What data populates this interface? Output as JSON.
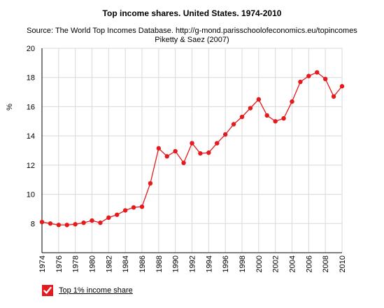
{
  "chart_data": {
    "type": "line",
    "title": "Top income shares. United States. 1974-2010",
    "subtitle": [
      "Source: The World Top Incomes Database. http://g-mond.parisschoolofeconomics.eu/topincomes",
      "Piketty & Saez (2007)"
    ],
    "xlabel": "",
    "ylabel": "%",
    "xlim": [
      1974,
      2010
    ],
    "ylim": [
      6,
      20
    ],
    "xticks": [
      "1974",
      "1976",
      "1978",
      "1980",
      "1982",
      "1984",
      "1986",
      "1988",
      "1990",
      "1992",
      "1994",
      "1996",
      "1998",
      "2000",
      "2002",
      "2004",
      "2006",
      "2008",
      "2010"
    ],
    "yticks": [
      "8",
      "10",
      "12",
      "14",
      "16",
      "18",
      "20"
    ],
    "grid": true,
    "legend_position": "bottom-left",
    "x": [
      1974,
      1975,
      1976,
      1977,
      1978,
      1979,
      1980,
      1981,
      1982,
      1983,
      1984,
      1985,
      1986,
      1987,
      1988,
      1989,
      1990,
      1991,
      1992,
      1993,
      1994,
      1995,
      1996,
      1997,
      1998,
      1999,
      2000,
      2001,
      2002,
      2003,
      2004,
      2005,
      2006,
      2007,
      2008,
      2009,
      2010
    ],
    "series": [
      {
        "name": "Top 1% income share",
        "color": "#e41a1c",
        "values": [
          8.1,
          8.0,
          7.9,
          7.9,
          7.95,
          8.05,
          8.2,
          8.05,
          8.4,
          8.6,
          8.9,
          9.1,
          9.15,
          10.75,
          13.15,
          12.6,
          12.95,
          12.15,
          13.5,
          12.8,
          12.85,
          13.5,
          14.1,
          14.8,
          15.3,
          15.9,
          16.5,
          15.4,
          15.0,
          15.2,
          16.35,
          17.7,
          18.1,
          18.35,
          17.9,
          16.7,
          17.4
        ]
      }
    ]
  }
}
